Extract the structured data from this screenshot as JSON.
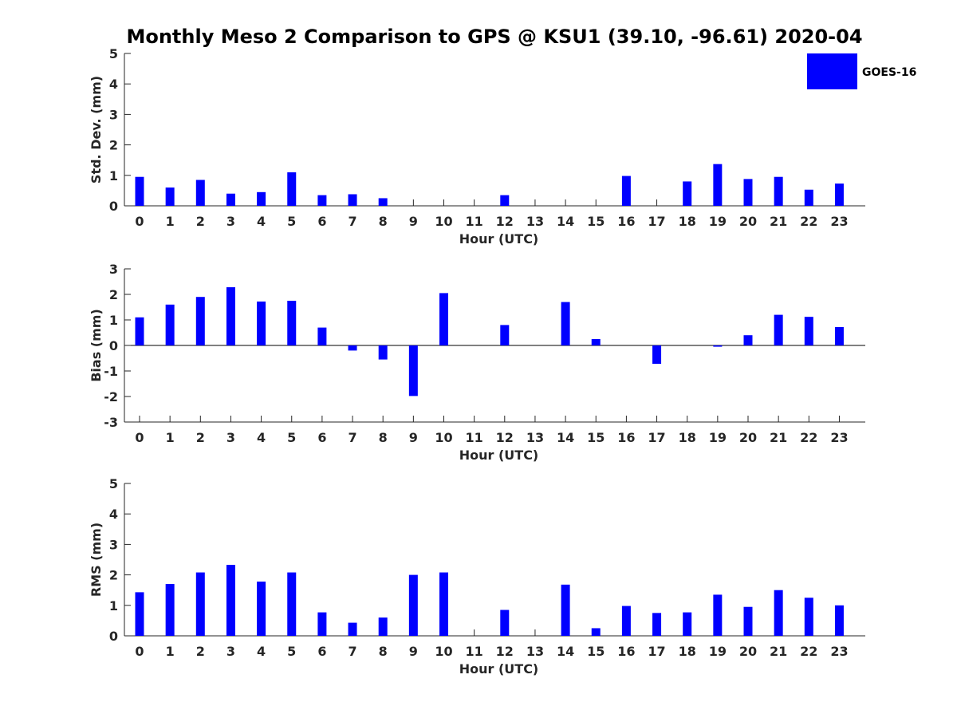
{
  "title": "Monthly Meso 2 Comparison to GPS @ KSU1 (39.10, -96.61) 2020-04",
  "legend": {
    "label": "GOES-16",
    "color": "#0000ff"
  },
  "chart_data": [
    {
      "type": "bar",
      "xlabel": "Hour (UTC)",
      "ylabel": "Std. Dev. (mm)",
      "ylim": [
        0,
        5
      ],
      "yticks": [
        "0",
        "1",
        "2",
        "3",
        "4",
        "5"
      ],
      "categories": [
        "0",
        "1",
        "2",
        "3",
        "4",
        "5",
        "6",
        "7",
        "8",
        "9",
        "10",
        "11",
        "12",
        "13",
        "14",
        "15",
        "16",
        "17",
        "18",
        "19",
        "20",
        "21",
        "22",
        "23"
      ],
      "series": [
        {
          "name": "GOES-16",
          "values": [
            0.95,
            0.6,
            0.85,
            0.4,
            0.45,
            1.1,
            0.35,
            0.38,
            0.25,
            0,
            0,
            0,
            0.35,
            0,
            0,
            0,
            0.98,
            0,
            0.8,
            1.37,
            0.88,
            0.95,
            0.53,
            0.73
          ]
        }
      ]
    },
    {
      "type": "bar",
      "xlabel": "Hour (UTC)",
      "ylabel": "Bias (mm)",
      "ylim": [
        -3,
        3
      ],
      "yticks": [
        "-3",
        "-2",
        "-1",
        "0",
        "1",
        "2",
        "3"
      ],
      "categories": [
        "0",
        "1",
        "2",
        "3",
        "4",
        "5",
        "6",
        "7",
        "8",
        "9",
        "10",
        "11",
        "12",
        "13",
        "14",
        "15",
        "16",
        "17",
        "18",
        "19",
        "20",
        "21",
        "22",
        "23"
      ],
      "series": [
        {
          "name": "GOES-16",
          "values": [
            1.1,
            1.6,
            1.9,
            2.28,
            1.72,
            1.75,
            0.7,
            -0.2,
            -0.55,
            -1.98,
            2.05,
            0,
            0.8,
            0,
            1.7,
            0.25,
            0,
            -0.72,
            0,
            -0.05,
            0.4,
            1.2,
            1.12,
            0.72
          ]
        }
      ]
    },
    {
      "type": "bar",
      "xlabel": "Hour (UTC)",
      "ylabel": "RMS (mm)",
      "ylim": [
        0,
        5
      ],
      "yticks": [
        "0",
        "1",
        "2",
        "3",
        "4",
        "5"
      ],
      "categories": [
        "0",
        "1",
        "2",
        "3",
        "4",
        "5",
        "6",
        "7",
        "8",
        "9",
        "10",
        "11",
        "12",
        "13",
        "14",
        "15",
        "16",
        "17",
        "18",
        "19",
        "20",
        "21",
        "22",
        "23"
      ],
      "series": [
        {
          "name": "GOES-16",
          "values": [
            1.43,
            1.7,
            2.08,
            2.33,
            1.78,
            2.08,
            0.77,
            0.43,
            0.6,
            2.0,
            2.08,
            0,
            0.85,
            0,
            1.68,
            0.25,
            0.98,
            0.75,
            0.77,
            1.35,
            0.95,
            1.5,
            1.25,
            1.0
          ]
        }
      ]
    }
  ]
}
